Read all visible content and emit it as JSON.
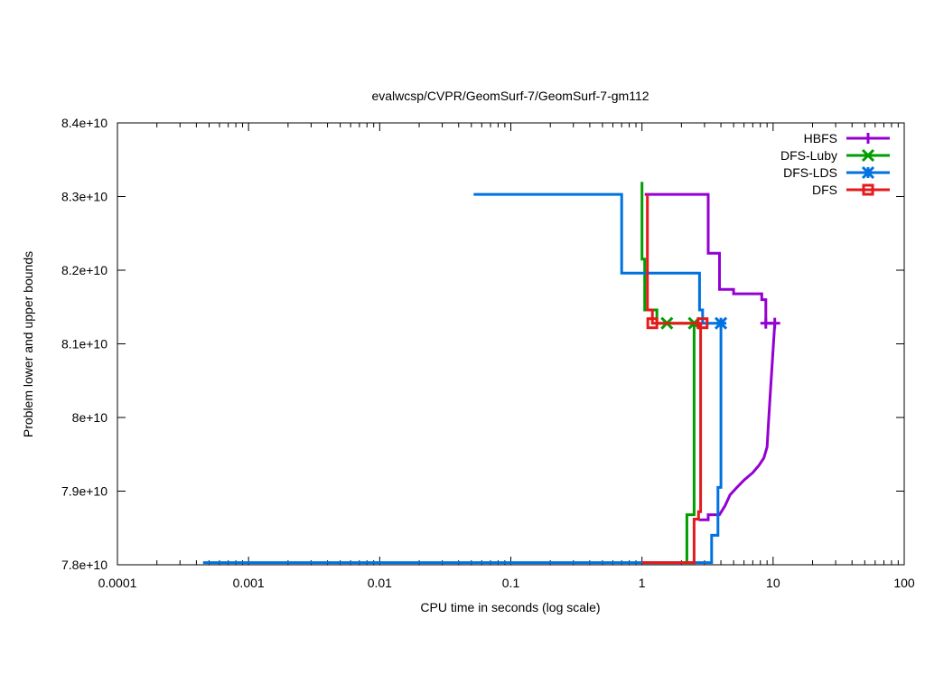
{
  "chart_data": {
    "type": "line",
    "title": "evalwcsp/CVPR/GeomSurf-7/GeomSurf-7-gm112",
    "xlabel": "CPU time in seconds (log scale)",
    "ylabel": "Problem lower and upper bounds",
    "xscale": "log",
    "xlim": [
      0.0001,
      100
    ],
    "ylim": [
      78000000000,
      84000000000
    ],
    "grid": false,
    "legend_position": "top-right",
    "x_ticks": [
      {
        "value": 0.0001,
        "label": "0.0001"
      },
      {
        "value": 0.001,
        "label": "0.001"
      },
      {
        "value": 0.01,
        "label": "0.01"
      },
      {
        "value": 0.1,
        "label": "0.1"
      },
      {
        "value": 1,
        "label": "1"
      },
      {
        "value": 10,
        "label": "10"
      },
      {
        "value": 100,
        "label": "100"
      }
    ],
    "y_ticks": [
      {
        "value": 78000000000,
        "label": "7.8e+10"
      },
      {
        "value": 79000000000,
        "label": "7.9e+10"
      },
      {
        "value": 80000000000,
        "label": "8e+10"
      },
      {
        "value": 81000000000,
        "label": "8.1e+10"
      },
      {
        "value": 82000000000,
        "label": "8.2e+10"
      },
      {
        "value": 83000000000,
        "label": "8.3e+10"
      },
      {
        "value": 84000000000,
        "label": "8.4e+10"
      }
    ],
    "series": [
      {
        "name": "HBFS",
        "color": "#9400d3",
        "marker": "plus",
        "upper": [
          [
            1.05,
            83030000000
          ],
          [
            3.2,
            83030000000
          ],
          [
            3.2,
            82230000000
          ],
          [
            3.9,
            82230000000
          ],
          [
            3.9,
            81740000000
          ],
          [
            5.0,
            81740000000
          ],
          [
            5.0,
            81680000000
          ],
          [
            8.2,
            81680000000
          ],
          [
            8.2,
            81600000000
          ],
          [
            8.8,
            81600000000
          ],
          [
            8.8,
            81280000000
          ],
          [
            10.3,
            81280000000
          ]
        ],
        "lower": [
          [
            2.7,
            78610000000
          ],
          [
            3.2,
            78610000000
          ],
          [
            3.2,
            78680000000
          ],
          [
            3.9,
            78680000000
          ],
          [
            4.3,
            78800000000
          ],
          [
            4.7,
            78950000000
          ],
          [
            5.3,
            79050000000
          ],
          [
            6.0,
            79150000000
          ],
          [
            7.0,
            79250000000
          ],
          [
            7.8,
            79350000000
          ],
          [
            8.5,
            79450000000
          ],
          [
            9.0,
            79600000000
          ],
          [
            9.2,
            79900000000
          ],
          [
            9.5,
            80300000000
          ],
          [
            9.9,
            80800000000
          ],
          [
            10.3,
            81280000000
          ]
        ],
        "markers": [
          [
            8.8,
            81280000000
          ],
          [
            10.3,
            81280000000
          ]
        ]
      },
      {
        "name": "DFS-Luby",
        "color": "#009e00",
        "marker": "x",
        "upper": [
          [
            1.0,
            83200000000
          ],
          [
            1.0,
            82150000000
          ],
          [
            1.05,
            82150000000
          ],
          [
            1.05,
            81460000000
          ],
          [
            1.3,
            81460000000
          ],
          [
            1.3,
            81280000000
          ],
          [
            2.55,
            81280000000
          ]
        ],
        "lower": [
          [
            2.2,
            78030000000
          ],
          [
            2.2,
            78680000000
          ],
          [
            2.5,
            78680000000
          ],
          [
            2.5,
            81280000000
          ]
        ],
        "markers": [
          [
            1.55,
            81280000000
          ],
          [
            2.5,
            81280000000
          ]
        ]
      },
      {
        "name": "DFS-LDS",
        "color": "#0072e0",
        "marker": "star",
        "upper": [
          [
            0.052,
            83030000000
          ],
          [
            0.7,
            83030000000
          ],
          [
            0.7,
            81960000000
          ],
          [
            2.75,
            81960000000
          ],
          [
            2.75,
            81460000000
          ],
          [
            2.9,
            81460000000
          ],
          [
            2.9,
            81280000000
          ],
          [
            4.0,
            81280000000
          ]
        ],
        "lower": [
          [
            0.00045,
            78030000000
          ],
          [
            3.4,
            78030000000
          ],
          [
            3.4,
            78400000000
          ],
          [
            3.8,
            78400000000
          ],
          [
            3.8,
            79050000000
          ],
          [
            4.0,
            79050000000
          ],
          [
            4.0,
            81280000000
          ]
        ],
        "markers": [
          [
            4.0,
            81280000000
          ]
        ]
      },
      {
        "name": "DFS",
        "color": "#e41a1c",
        "marker": "square",
        "upper": [
          [
            1.1,
            83030000000
          ],
          [
            1.1,
            81460000000
          ],
          [
            1.2,
            81460000000
          ],
          [
            1.2,
            81280000000
          ],
          [
            2.9,
            81280000000
          ]
        ],
        "lower": [
          [
            1.0,
            78030000000
          ],
          [
            2.5,
            78030000000
          ],
          [
            2.5,
            78620000000
          ],
          [
            2.7,
            78620000000
          ],
          [
            2.7,
            78720000000
          ],
          [
            2.8,
            78720000000
          ],
          [
            2.8,
            81280000000
          ]
        ],
        "markers": [
          [
            1.2,
            81280000000
          ],
          [
            2.9,
            81280000000
          ]
        ]
      }
    ]
  }
}
